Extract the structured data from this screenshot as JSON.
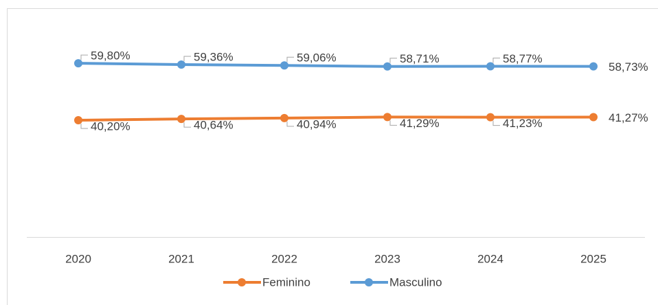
{
  "chart_data": {
    "type": "line",
    "categories": [
      "2020",
      "2021",
      "2022",
      "2023",
      "2024",
      "2025"
    ],
    "series": [
      {
        "name": "Feminino",
        "color": "#ed7d31",
        "values": [
          40.2,
          40.64,
          40.94,
          41.29,
          41.23,
          41.27
        ],
        "value_labels": [
          "40,20%",
          "40,64%",
          "40,94%",
          "41,29%",
          "41,23%",
          "41,27%"
        ]
      },
      {
        "name": "Masculino",
        "color": "#5b9bd5",
        "values": [
          59.8,
          59.36,
          59.06,
          58.71,
          58.77,
          58.73
        ],
        "value_labels": [
          "59,80%",
          "59,36%",
          "59,06%",
          "58,71%",
          "58,77%",
          "58,73%"
        ]
      }
    ],
    "ylim": [
      0,
      70
    ]
  }
}
